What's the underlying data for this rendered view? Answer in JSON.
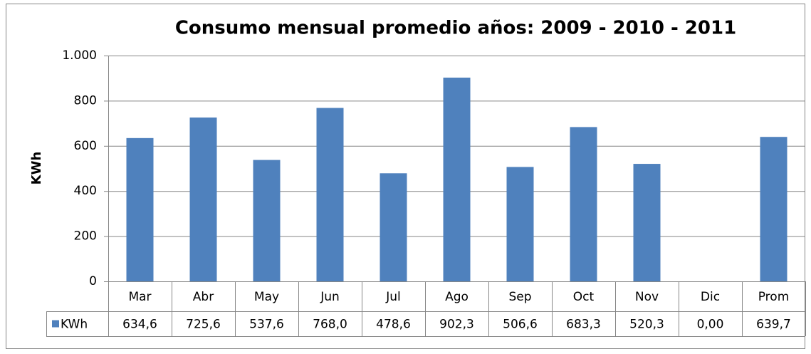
{
  "chart_data": {
    "type": "bar",
    "title": "Consumo  mensual promedio años: 2009 - 2010 - 2011",
    "ylabel": "KWh",
    "categories": [
      "Mar",
      "Abr",
      "May",
      "Jun",
      "Jul",
      "Ago",
      "Sep",
      "Oct",
      "Nov",
      "Dic",
      "Prom"
    ],
    "series": [
      {
        "name": "KWh",
        "color": "#4f81bd",
        "values": [
          634.6,
          725.6,
          537.6,
          768.0,
          478.6,
          902.3,
          506.6,
          683.3,
          520.3,
          0,
          639.7
        ],
        "value_labels": [
          "634,6",
          "725,6",
          "537,6",
          "768,0",
          "478,6",
          "902,3",
          "506,6",
          "683,3",
          "520,3",
          "0,00",
          "639,7"
        ]
      }
    ],
    "ylim": [
      0,
      1000
    ],
    "yticks": [
      0,
      200,
      400,
      600,
      800,
      {
        "value": 1000,
        "label": "1.000"
      }
    ],
    "grid": true
  }
}
